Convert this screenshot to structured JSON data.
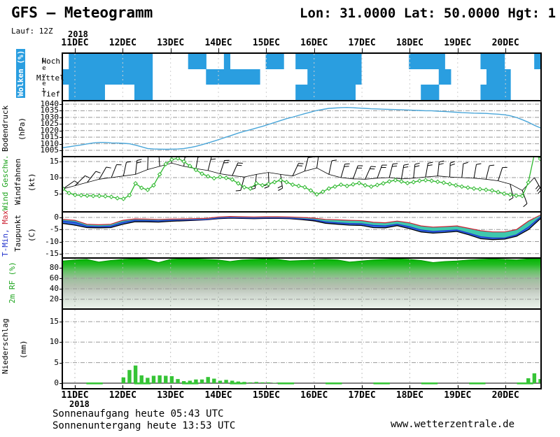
{
  "header": {
    "title": "GFS – Meteogramm",
    "coords": "Lon: 31.0000 Lat: 50.0000 Hgt: 1",
    "run": "Lauf: 12Z"
  },
  "axis": {
    "year": "2018",
    "days": [
      "11DEC",
      "12DEC",
      "13DEC",
      "14DEC",
      "15DEC",
      "16DEC",
      "17DEC",
      "18DEC",
      "19DEC",
      "20DEC"
    ]
  },
  "footer": {
    "sunrise": "Sonnenaufgang heute 05:43 UTC",
    "sunset": "Sonnenuntergang heute 13:53 UTC",
    "site": "www.wetterzentrale.de"
  },
  "panel_labels": {
    "clouds_title": "Wolken (%)",
    "level": "Level",
    "hoch": "Hoch",
    "mittel": "Mittel",
    "tief": "Tief",
    "pressure": "Bodendruck",
    "pressure_unit": "(hPa)",
    "wind_speed": "Wind Geschw.",
    "wind_barbs": "Windfahnen",
    "wind_unit": "(kt)",
    "t_min": "T-Min,",
    "t_max": " Max",
    "dew": "Taupunkt",
    "temp_unit": "(C)",
    "humidity": "2m RF (%)",
    "precip": "Niederschlag",
    "precip_unit": "(mm)"
  },
  "colors": {
    "cloud_blue": "#2A9EE0",
    "pressure_line": "#4AA6D9",
    "wind_green": "#2DB82D",
    "precip_green": "#36C436",
    "label_green": "#1FA51F",
    "tmax_red": "#CC2233",
    "tmin_blue": "#2233CC",
    "dew_black": "#000000",
    "fill_teal": "#3FC8AE",
    "fill_blue": "#2E6BE0",
    "hum_top_green": "#00B400"
  },
  "chart_data": [
    {
      "type": "heatmap",
      "title": "Wolken (%)",
      "rows": [
        "Hoch",
        "Mittel",
        "Tief"
      ],
      "step_hours": 3,
      "hoch": [
        0,
        1,
        1,
        1,
        1,
        1,
        1,
        1,
        1,
        1,
        1,
        1,
        1,
        1,
        1,
        0,
        0,
        0,
        0,
        0,
        0,
        1,
        1,
        1,
        0,
        0,
        0,
        1,
        0,
        0,
        0,
        0,
        0,
        0,
        1,
        1,
        1,
        0,
        0,
        1,
        1,
        1,
        1,
        1,
        1,
        1,
        1,
        1,
        1,
        1,
        0,
        0,
        0,
        0,
        0,
        0,
        0,
        0,
        1,
        1,
        1,
        1,
        1,
        1,
        0,
        0,
        0,
        0,
        0,
        0,
        1,
        1,
        1,
        1,
        0,
        0,
        0,
        0,
        0,
        1
      ],
      "mittel": [
        1,
        1,
        1,
        1,
        1,
        1,
        1,
        1,
        1,
        1,
        1,
        1,
        1,
        1,
        1,
        0,
        0,
        0,
        0,
        0,
        0,
        0,
        0,
        0,
        1,
        1,
        1,
        1,
        1,
        1,
        1,
        1,
        1,
        0,
        0,
        0,
        0,
        0,
        0,
        0,
        0,
        1,
        1,
        1,
        1,
        1,
        1,
        1,
        1,
        1,
        0,
        0,
        0,
        0,
        0,
        0,
        0,
        0,
        0,
        0,
        0,
        0,
        0,
        1,
        1,
        0,
        0,
        0,
        0,
        0,
        0,
        1,
        1,
        1,
        1,
        0,
        0,
        0,
        0,
        0
      ],
      "tief": [
        0,
        1,
        1,
        1,
        1,
        1,
        1,
        0,
        0,
        0,
        0,
        0,
        1,
        1,
        1,
        0,
        0,
        0,
        0,
        0,
        0,
        0,
        0,
        0,
        0,
        0,
        0,
        0,
        0,
        0,
        0,
        0,
        0,
        0,
        0,
        0,
        0,
        0,
        0,
        1,
        1,
        1,
        1,
        1,
        1,
        1,
        1,
        1,
        1,
        0,
        0,
        0,
        0,
        0,
        0,
        0,
        0,
        0,
        0,
        0,
        1,
        1,
        1,
        0,
        0,
        0,
        0,
        0,
        0,
        0,
        1,
        1,
        1,
        1,
        1,
        0,
        0,
        0,
        0,
        0
      ]
    },
    {
      "type": "line",
      "title": "Bodendruck (hPa)",
      "yticks": [
        1040,
        1035,
        1030,
        1025,
        1020,
        1015,
        1010,
        1005
      ],
      "ylim": [
        1003,
        1042
      ],
      "values": [
        1007.0,
        1007.7,
        1008.4,
        1009.1,
        1009.9,
        1010.6,
        1011.0,
        1011.0,
        1010.6,
        1010.5,
        1010.3,
        1010.0,
        1008.9,
        1007.7,
        1006.4,
        1006.0,
        1005.9,
        1005.8,
        1005.9,
        1006.0,
        1006.4,
        1007.1,
        1008.0,
        1009.3,
        1010.6,
        1012.0,
        1013.5,
        1015.0,
        1016.5,
        1018.1,
        1019.4,
        1020.6,
        1021.9,
        1023.2,
        1024.6,
        1026.1,
        1027.6,
        1029.0,
        1030.2,
        1031.5,
        1032.8,
        1034.0,
        1035.2,
        1036.0,
        1036.8,
        1037.1,
        1037.4,
        1037.5,
        1037.3,
        1037.0,
        1036.8,
        1036.5,
        1036.4,
        1036.2,
        1036.0,
        1035.9,
        1035.8,
        1035.6,
        1035.4,
        1035.2,
        1035.0,
        1035.0,
        1034.7,
        1034.5,
        1034.2,
        1033.9,
        1033.6,
        1033.4,
        1033.2,
        1033.1,
        1033.0,
        1032.7,
        1032.4,
        1032.0,
        1031.2,
        1030.0,
        1028.2,
        1026.3,
        1024.0,
        1022.0
      ]
    },
    {
      "type": "line",
      "title": "Wind Geschw. / Windfahnen (kt)",
      "yticks": [
        15,
        10,
        5
      ],
      "speed": [
        6.5,
        5.2,
        4.6,
        4.5,
        4.4,
        4.3,
        4.3,
        4.2,
        4.0,
        3.6,
        3.4,
        4.5,
        8.2,
        6.8,
        6.2,
        7.6,
        11.0,
        14.2,
        15.6,
        16.0,
        15.0,
        13.6,
        12.4,
        11.2,
        10.4,
        9.8,
        10.2,
        9.9,
        9.4,
        8.2,
        7.0,
        6.6,
        8.2,
        7.6,
        8.0,
        8.6,
        9.2,
        8.6,
        7.8,
        7.4,
        7.0,
        6.0,
        4.8,
        5.6,
        6.6,
        7.2,
        7.8,
        7.4,
        7.9,
        8.3,
        7.6,
        7.2,
        7.7,
        8.2,
        8.8,
        9.2,
        8.8,
        8.3,
        8.6,
        9.0,
        9.2,
        9.0,
        8.7,
        8.4,
        8.0,
        7.6,
        7.2,
        6.9,
        6.6,
        6.4,
        6.2,
        6.0,
        5.5,
        5.0,
        4.7,
        4.4,
        4.3,
        8.5,
        17.3,
        15.8
      ],
      "barbs": [
        [
          0,
          6.5,
          55
        ],
        [
          2,
          7.5,
          45
        ],
        [
          4,
          8.5,
          38
        ],
        [
          6,
          9.5,
          30
        ],
        [
          8,
          10,
          22
        ],
        [
          10,
          10.5,
          12
        ],
        [
          12,
          11,
          6
        ],
        [
          14,
          12.5,
          2
        ],
        [
          16,
          13.5,
          -4
        ],
        [
          18,
          14.5,
          0
        ],
        [
          20,
          13.5,
          6
        ],
        [
          22,
          12.8,
          10
        ],
        [
          24,
          12.2,
          14
        ],
        [
          26,
          11.2,
          18
        ],
        [
          28,
          10.6,
          24
        ],
        [
          30,
          10.2,
          195
        ],
        [
          32,
          11,
          185
        ],
        [
          34,
          11.6,
          178
        ],
        [
          36,
          11,
          172
        ],
        [
          38,
          10.5,
          25
        ],
        [
          40,
          12,
          14
        ],
        [
          42,
          13,
          8
        ],
        [
          44,
          11,
          12
        ],
        [
          46,
          10,
          16
        ],
        [
          48,
          9.6,
          20
        ],
        [
          50,
          9.5,
          24
        ],
        [
          52,
          9.8,
          20
        ],
        [
          54,
          10,
          14
        ],
        [
          56,
          9.6,
          10
        ],
        [
          58,
          9.8,
          6
        ],
        [
          60,
          10.2,
          10
        ],
        [
          62,
          10.5,
          6
        ],
        [
          64,
          10.2,
          2
        ],
        [
          66,
          10,
          6
        ],
        [
          68,
          9.8,
          10
        ],
        [
          70,
          9.5,
          14
        ],
        [
          72,
          9,
          18
        ],
        [
          74,
          8,
          168
        ],
        [
          76,
          6,
          160
        ],
        [
          78,
          10,
          150
        ]
      ]
    },
    {
      "type": "line",
      "title": "T-Min, Max / Taupunkt (C)",
      "yticks": [
        0,
        -5,
        -10,
        -15
      ],
      "series": [
        {
          "name": "T-Max",
          "values": [
            -0.8,
            -1.2,
            -2.8,
            -3.0,
            -2.8,
            -1.2,
            -0.6,
            -0.7,
            -0.8,
            -0.7,
            -0.6,
            -0.5,
            -0.4,
            0.2,
            0.4,
            0.3,
            0.2,
            0.3,
            0.3,
            0.2,
            0.0,
            -0.3,
            -0.8,
            -1.0,
            -1.2,
            -1.3,
            -2.0,
            -2.2,
            -1.5,
            -2.2,
            -3.5,
            -4.0,
            -3.8,
            -3.5,
            -4.5,
            -5.5,
            -6.0,
            -6.0,
            -5.0,
            -1.5,
            1.0
          ]
        },
        {
          "name": "T-Min",
          "values": [
            -1.5,
            -2.0,
            -3.6,
            -3.8,
            -3.6,
            -2.0,
            -1.2,
            -1.3,
            -1.4,
            -1.2,
            -1.1,
            -1.0,
            -0.9,
            -0.3,
            -0.1,
            -0.2,
            -0.3,
            -0.2,
            -0.2,
            -0.3,
            -0.6,
            -1.0,
            -1.8,
            -2.2,
            -2.5,
            -2.6,
            -3.3,
            -3.5,
            -2.8,
            -3.8,
            -5.2,
            -5.8,
            -5.5,
            -5.2,
            -6.5,
            -8.0,
            -8.5,
            -8.5,
            -7.2,
            -4.0,
            0.2
          ]
        },
        {
          "name": "Taupunkt",
          "values": [
            -2.5,
            -3.2,
            -4.2,
            -4.3,
            -4.2,
            -2.8,
            -1.8,
            -1.8,
            -1.9,
            -1.6,
            -1.4,
            -1.2,
            -1.0,
            -0.5,
            -0.3,
            -0.4,
            -0.5,
            -0.4,
            -0.4,
            -0.5,
            -0.9,
            -1.4,
            -2.4,
            -2.8,
            -3.2,
            -3.3,
            -4.2,
            -4.3,
            -3.4,
            -4.6,
            -6.0,
            -6.5,
            -6.2,
            -5.8,
            -7.2,
            -8.8,
            -9.2,
            -9.0,
            -7.8,
            -5.0,
            -0.5
          ]
        }
      ]
    },
    {
      "type": "area",
      "title": "2m RF (%)",
      "yticks": [
        80,
        60,
        40,
        20
      ],
      "values": [
        93,
        95,
        96,
        91,
        94,
        96,
        97,
        96,
        90,
        96,
        97,
        97,
        96,
        95,
        92,
        95,
        96,
        97,
        96,
        93,
        94,
        95,
        96,
        95,
        91,
        93,
        95,
        96,
        97,
        96,
        94,
        90,
        92,
        93,
        95,
        96,
        97,
        96,
        95,
        97,
        98
      ]
    },
    {
      "type": "bar",
      "title": "Niederschlag (mm)",
      "yticks": [
        15,
        10,
        5,
        0
      ],
      "values": [
        0,
        0,
        0,
        0,
        0,
        0,
        0,
        0,
        0,
        0,
        1.4,
        3.2,
        4.3,
        1.9,
        1.3,
        1.8,
        1.9,
        1.8,
        1.7,
        1.0,
        0.5,
        0.6,
        0.9,
        0.9,
        1.5,
        1.1,
        0.6,
        0.8,
        0.6,
        0.4,
        0.3,
        0.2,
        0.3,
        0.2,
        0.2,
        0.1,
        0.1,
        0,
        0,
        0,
        0,
        0,
        0,
        0,
        0,
        0,
        0,
        0,
        0,
        0,
        0,
        0,
        0,
        0,
        0,
        0,
        0,
        0,
        0,
        0,
        0,
        0,
        0,
        0,
        0,
        0,
        0,
        0,
        0,
        0,
        0,
        0,
        0,
        0,
        0,
        0,
        0,
        1.2,
        2.4,
        1.0
      ]
    }
  ]
}
